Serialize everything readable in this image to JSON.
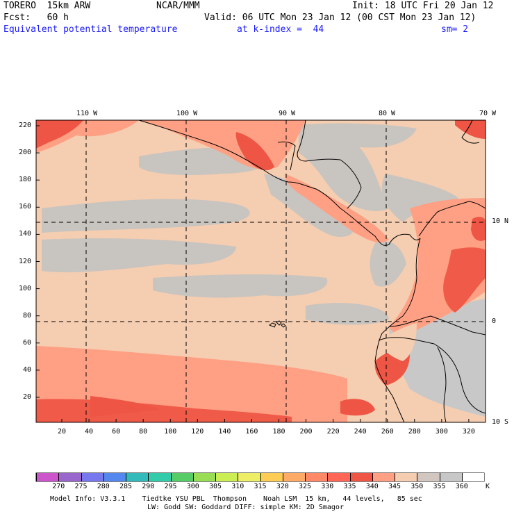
{
  "header": {
    "model": "TORERO  15km ARW",
    "org": "NCAR/MMM",
    "init": "Init: 18 UTC Fri 20 Jan 12",
    "fcst": "Fcst:   60 h",
    "valid": "Valid: 06 UTC Mon 23 Jan 12 (00 CST Mon 23 Jan 12)",
    "field": "Equivalent potential temperature",
    "level": "at k-index =  44",
    "smooth": "sm= 2"
  },
  "map": {
    "lon_labels": [
      "110 W",
      "100 W",
      "90 W",
      "80 W",
      "70 W"
    ],
    "lat_labels": [
      "10 N",
      "0",
      "10 S"
    ],
    "y_ticks": [
      "220",
      "200",
      "180",
      "160",
      "140",
      "120",
      "100",
      "80",
      "60",
      "40",
      "20"
    ],
    "x_ticks": [
      "20",
      "40",
      "60",
      "80",
      "100",
      "120",
      "140",
      "160",
      "180",
      "200",
      "220",
      "240",
      "260",
      "280",
      "300",
      "320"
    ]
  },
  "colorbar": {
    "labels": [
      "270",
      "275",
      "280",
      "285",
      "290",
      "295",
      "300",
      "305",
      "310",
      "315",
      "320",
      "325",
      "330",
      "335",
      "340",
      "345",
      "350",
      "355",
      "360"
    ],
    "unit": "K",
    "colors": [
      "#cc55cc",
      "#9966cc",
      "#7777ee",
      "#5588ee",
      "#33bbbb",
      "#33ccaa",
      "#55cc66",
      "#99dd55",
      "#ccee55",
      "#eeee66",
      "#ffcc55",
      "#ffaa66",
      "#ff8866",
      "#ff6655",
      "#ee5544",
      "#ffa084",
      "#f5cdb0",
      "#d2c7c0",
      "#c7c7c7",
      "#ffffff"
    ]
  },
  "footer": {
    "line1": "Model Info: V3.3.1    Tiedtke YSU PBL  Thompson    Noah LSM  15 km,   44 levels,   85 sec",
    "line2": "LW: Godd SW: Goddard DIFF: simple KM: 2D Smagor"
  }
}
